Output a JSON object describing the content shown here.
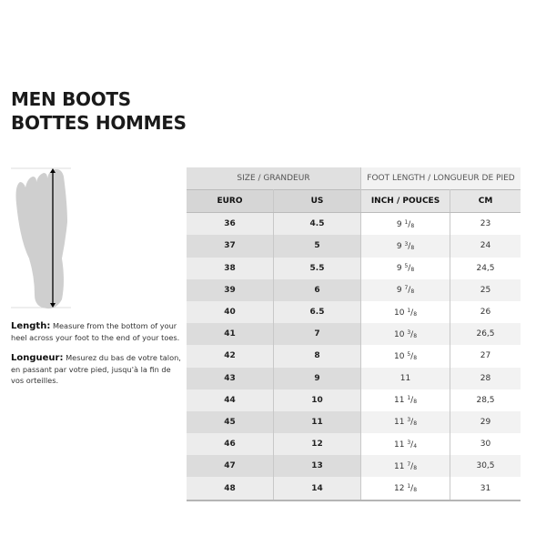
{
  "title": {
    "line1": "MEN BOOTS",
    "line2": "BOTTES HOMMES"
  },
  "measure": {
    "en_label": "Length:",
    "en_text": "Measure from the bottom of your heel across your foot to the end of your toes.",
    "fr_label": "Longueur:",
    "fr_text": "Mesurez du bas de votre talon, en passant par votre pied, jusqu'à la fin de vos orteilles."
  },
  "table": {
    "group_headers": [
      "SIZE / GRANDEUR",
      "FOOT LENGTH / LONGUEUR DE PIED"
    ],
    "columns": [
      "EURO",
      "US",
      "INCH / POUCES",
      "CM"
    ],
    "rows": [
      {
        "euro": "36",
        "us": "4.5",
        "inch": "9",
        "num": "1",
        "den": "8",
        "cm": "23"
      },
      {
        "euro": "37",
        "us": "5",
        "inch": "9",
        "num": "3",
        "den": "8",
        "cm": "24"
      },
      {
        "euro": "38",
        "us": "5.5",
        "inch": "9",
        "num": "5",
        "den": "8",
        "cm": "24,5"
      },
      {
        "euro": "39",
        "us": "6",
        "inch": "9",
        "num": "7",
        "den": "8",
        "cm": "25"
      },
      {
        "euro": "40",
        "us": "6.5",
        "inch": "10",
        "num": "1",
        "den": "8",
        "cm": "26"
      },
      {
        "euro": "41",
        "us": "7",
        "inch": "10",
        "num": "3",
        "den": "8",
        "cm": "26,5"
      },
      {
        "euro": "42",
        "us": "8",
        "inch": "10",
        "num": "5",
        "den": "8",
        "cm": "27"
      },
      {
        "euro": "43",
        "us": "9",
        "inch": "11",
        "num": "",
        "den": "",
        "cm": "28"
      },
      {
        "euro": "44",
        "us": "10",
        "inch": "11",
        "num": "1",
        "den": "8",
        "cm": "28,5"
      },
      {
        "euro": "45",
        "us": "11",
        "inch": "11",
        "num": "3",
        "den": "8",
        "cm": "29"
      },
      {
        "euro": "46",
        "us": "12",
        "inch": "11",
        "num": "3",
        "den": "4",
        "cm": "30"
      },
      {
        "euro": "47",
        "us": "13",
        "inch": "11",
        "num": "7",
        "den": "8",
        "cm": "30,5"
      },
      {
        "euro": "48",
        "us": "14",
        "inch": "12",
        "num": "1",
        "den": "8",
        "cm": "31"
      }
    ]
  }
}
